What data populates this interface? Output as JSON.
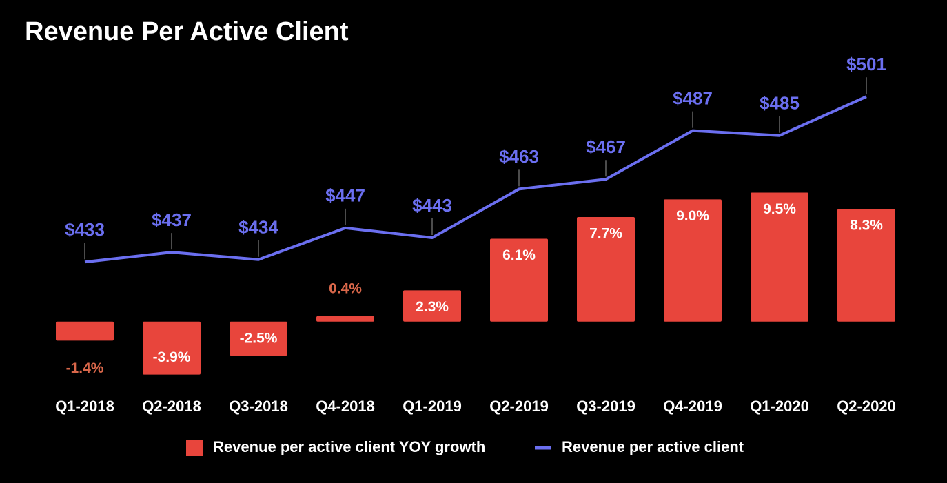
{
  "chart_data": {
    "type": "combo",
    "title": "Revenue Per Active Client",
    "categories": [
      "Q1-2018",
      "Q2-2018",
      "Q3-2018",
      "Q4-2018",
      "Q1-2019",
      "Q2-2019",
      "Q3-2019",
      "Q4-2019",
      "Q1-2020",
      "Q2-2020"
    ],
    "series": [
      {
        "name": "Revenue per active client YOY growth",
        "type": "bar",
        "color": "#e8453c",
        "values": [
          -1.4,
          -3.9,
          -2.5,
          0.4,
          2.3,
          6.1,
          7.7,
          9.0,
          9.5,
          8.3
        ],
        "value_labels": [
          "-1.4%",
          "-3.9%",
          "-2.5%",
          "0.4%",
          "2.3%",
          "6.1%",
          "7.7%",
          "9.0%",
          "9.5%",
          "8.3%"
        ]
      },
      {
        "name": "Revenue per active client",
        "type": "line",
        "axis": "y2",
        "color": "#6b6ff0",
        "values": [
          433,
          437,
          434,
          447,
          443,
          463,
          467,
          487,
          485,
          501
        ],
        "value_labels": [
          "$433",
          "$437",
          "$434",
          "$447",
          "$443",
          "$463",
          "$467",
          "$487",
          "$485",
          "$501"
        ]
      }
    ],
    "ylim": [
      -6,
      18
    ],
    "y2lim": [
      375,
      509
    ],
    "legend": "bottom"
  }
}
